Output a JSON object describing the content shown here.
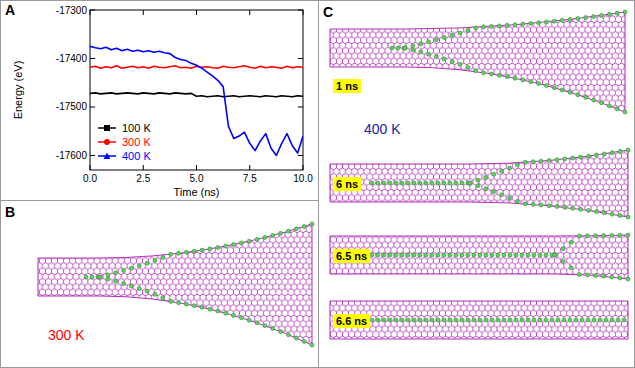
{
  "chart_data": {
    "type": "line",
    "panel_label": "A",
    "x_label": "Time (ns)",
    "y_label": "Energy (eV)",
    "x": [
      0,
      0.25,
      0.5,
      0.75,
      1,
      1.25,
      1.5,
      1.75,
      2,
      2.25,
      2.5,
      2.75,
      3,
      3.25,
      3.5,
      3.75,
      4,
      4.25,
      4.5,
      4.75,
      5,
      5.25,
      5.5,
      5.75,
      6,
      6.25,
      6.5,
      6.75,
      7,
      7.25,
      7.5,
      7.75,
      8,
      8.25,
      8.5,
      8.75,
      9,
      9.25,
      9.5,
      9.75,
      10
    ],
    "series": [
      {
        "name": "100 K",
        "color": "#000000",
        "marker": "square",
        "line_style": "solid",
        "values": [
          -17472,
          -17471,
          -17473,
          -17472,
          -17471,
          -17473,
          -17472,
          -17471,
          -17472,
          -17473,
          -17471,
          -17472,
          -17473,
          -17471,
          -17472,
          -17473,
          -17471,
          -17472,
          -17473,
          -17472,
          -17478,
          -17477,
          -17479,
          -17478,
          -17477,
          -17479,
          -17478,
          -17477,
          -17479,
          -17478,
          -17477,
          -17478,
          -17479,
          -17477,
          -17478,
          -17479,
          -17477,
          -17478,
          -17479,
          -17477,
          -17478
        ]
      },
      {
        "name": "300 K",
        "color": "#ff0000",
        "marker": "circle",
        "line_style": "solid",
        "values": [
          -17418,
          -17416,
          -17420,
          -17417,
          -17419,
          -17415,
          -17420,
          -17418,
          -17416,
          -17419,
          -17417,
          -17420,
          -17416,
          -17418,
          -17419,
          -17417,
          -17415,
          -17419,
          -17418,
          -17420,
          -17416,
          -17418,
          -17417,
          -17419,
          -17420,
          -17416,
          -17418,
          -17419,
          -17417,
          -17415,
          -17418,
          -17420,
          -17416,
          -17419,
          -17417,
          -17418,
          -17420,
          -17416,
          -17419,
          -17417,
          -17418
        ]
      },
      {
        "name": "400 K",
        "color": "#0000ff",
        "marker": "triangle",
        "line_style": "solid",
        "values": [
          -17375,
          -17378,
          -17380,
          -17377,
          -17382,
          -17379,
          -17384,
          -17381,
          -17385,
          -17383,
          -17386,
          -17384,
          -17387,
          -17385,
          -17388,
          -17390,
          -17398,
          -17402,
          -17404,
          -17410,
          -17414,
          -17420,
          -17428,
          -17436,
          -17445,
          -17458,
          -17540,
          -17565,
          -17560,
          -17552,
          -17575,
          -17590,
          -17570,
          -17555,
          -17585,
          -17600,
          -17575,
          -17555,
          -17580,
          -17595,
          -17560
        ]
      }
    ],
    "xlim": [
      0,
      10
    ],
    "xticks": [
      {
        "value": 0,
        "label": "0.0"
      },
      2.5,
      {
        "value": 5,
        "label": "5.0"
      },
      7.5,
      {
        "value": 10,
        "label": "10.0"
      }
    ],
    "ylim": [
      -17630,
      -17300
    ],
    "yticks": [
      -17300,
      -17400,
      -17500,
      -17600
    ],
    "grid": false,
    "legend": "lower left"
  },
  "panels": [
    {
      "label": "B",
      "temperature": "300 K"
    },
    {
      "label": "C",
      "temperature": "400 K",
      "snapshots": [
        "1 ns",
        "6 ns",
        "6.5 ns",
        "6.6 ns"
      ]
    }
  ]
}
